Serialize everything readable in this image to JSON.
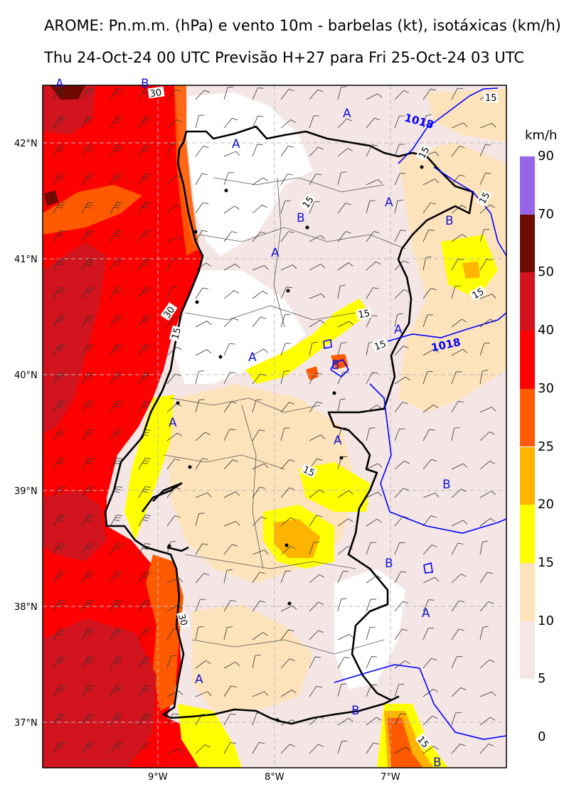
{
  "title_line1": "AROME: Pn.m.m. (hPa) e vento 10m - barbelas (kt), isotáxicas (km/h)",
  "title_line2": "Thu 24-Oct-24 00 UTC Previsão H+27 para Fri 25-Oct-24 03 UTC",
  "colorbar": {
    "unit": "km/h",
    "levels": [
      "0",
      "5",
      "10",
      "15",
      "20",
      "25",
      "30",
      "40",
      "50",
      "70",
      "90"
    ],
    "colors": [
      "#ffffff",
      "#f5e6e6",
      "#fde3bb",
      "#ffff00",
      "#ffb400",
      "#ff5a00",
      "#ff0000",
      "#d2141e",
      "#6e0a00",
      "#9664e6"
    ]
  },
  "axes": {
    "x_ticks": [
      "9°W",
      "8°W",
      "7°W"
    ],
    "y_ticks": [
      "42°N",
      "41°N",
      "40°N",
      "39°N",
      "38°N",
      "37°N"
    ]
  },
  "isobars": {
    "value": "1018",
    "color": "#0000ff"
  },
  "isotach_labels": [
    "30",
    "15",
    "30",
    "15",
    "15",
    "15",
    "15",
    "15",
    "15",
    "15",
    "15",
    "15",
    "15",
    "30",
    "15"
  ],
  "pressure_centers": [
    "A",
    "B",
    "A",
    "A",
    "A",
    "B",
    "B",
    "A",
    "A",
    "B",
    "A",
    "A",
    "A",
    "B",
    "B",
    "A",
    "A",
    "B",
    "B"
  ]
}
